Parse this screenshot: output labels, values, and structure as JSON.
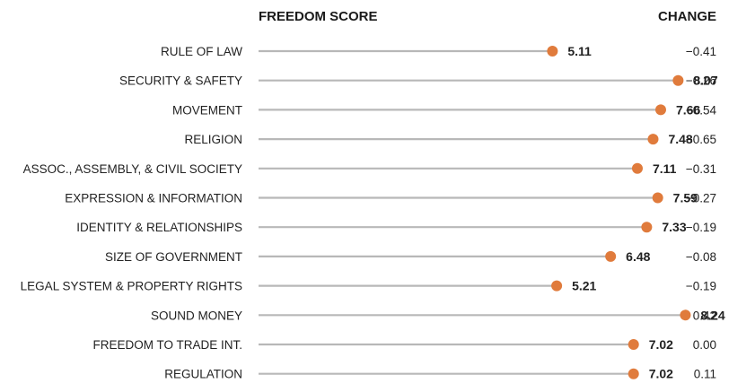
{
  "headers": {
    "score": "FREEDOM SCORE",
    "change": "CHANGE"
  },
  "colors": {
    "dot": "#e07b3c",
    "stem": "#b8b8b8"
  },
  "chart_data": {
    "type": "lollipop",
    "title": "",
    "xlim": [
      0,
      10
    ],
    "grid": false,
    "categories": [
      "RULE OF LAW",
      "SECURITY & SAFETY",
      "MOVEMENT",
      "RELIGION",
      "ASSOC., ASSEMBLY, & CIVIL SOCIETY",
      "EXPRESSION & INFORMATION",
      "IDENTITY & RELATIONSHIPS",
      "SIZE OF GOVERNMENT",
      "LEGAL SYSTEM & PROPERTY RIGHTS",
      "SOUND MONEY",
      "FREEDOM TO TRADE INT.",
      "REGULATION"
    ],
    "values": [
      5.11,
      8.07,
      7.66,
      7.48,
      7.11,
      7.59,
      7.33,
      6.48,
      5.21,
      8.24,
      7.02,
      7.02
    ],
    "value_labels": [
      "5.11",
      "8.07",
      "7.66",
      "7.48",
      "7.11",
      "7.59",
      "7.33",
      "6.48",
      "5.21",
      "8.24",
      "7.02",
      "7.02"
    ],
    "change_labels": [
      "−0.41",
      "−0.26",
      "−0.54",
      "−0.65",
      "−0.31",
      "−0.27",
      "−0.19",
      "−0.08",
      "−0.19",
      "0.42",
      "0.00",
      "0.11"
    ]
  }
}
